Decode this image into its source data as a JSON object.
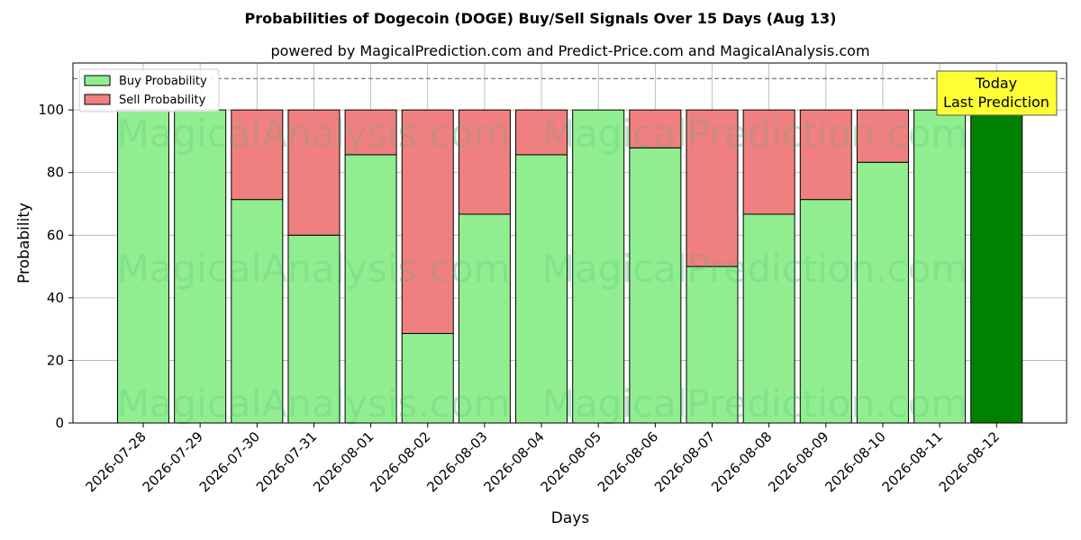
{
  "chart_data": {
    "type": "bar",
    "stacked": true,
    "title": "Probabilities of Dogecoin (DOGE) Buy/Sell Signals Over 15 Days (Aug 13)",
    "subtitle": "powered by MagicalPrediction.com and Predict-Price.com and MagicalAnalysis.com",
    "xlabel": "Days",
    "ylabel": "Probability",
    "ylim": [
      0,
      115
    ],
    "yticks": [
      0,
      20,
      40,
      60,
      80,
      100
    ],
    "grid": true,
    "legend_position": "top-left",
    "reference_line": {
      "y": 110,
      "style": "dashed"
    },
    "categories": [
      "2026-07-28",
      "2026-07-29",
      "2026-07-30",
      "2026-07-31",
      "2026-08-01",
      "2026-08-02",
      "2026-08-03",
      "2026-08-04",
      "2026-08-05",
      "2026-08-06",
      "2026-08-07",
      "2026-08-08",
      "2026-08-09",
      "2026-08-10",
      "2026-08-11",
      "2026-08-12"
    ],
    "series": [
      {
        "name": "Buy Probability",
        "color": "#90ee90",
        "values": [
          100,
          100,
          71.4,
          60,
          85.7,
          28.6,
          66.7,
          85.7,
          100,
          87.9,
          50,
          66.7,
          71.4,
          83.3,
          100,
          100
        ]
      },
      {
        "name": "Sell Probability",
        "color": "#f08080",
        "values": [
          0,
          0,
          28.6,
          40,
          14.3,
          71.4,
          33.3,
          14.3,
          0,
          12.1,
          50,
          33.3,
          28.6,
          16.7,
          0,
          0
        ]
      }
    ],
    "highlight": {
      "category": "2026-08-12",
      "color": "#008000"
    },
    "annotation": {
      "line1": "Today",
      "line2": "Last Prediction",
      "background": "#ffff33"
    },
    "watermarks": [
      "MagicalAnalysis.com",
      "MagicalPrediction.com"
    ]
  }
}
